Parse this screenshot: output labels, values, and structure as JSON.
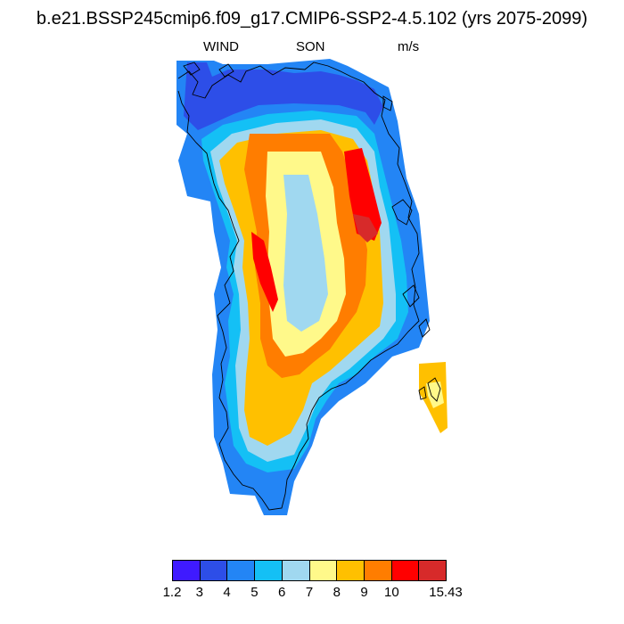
{
  "title": "b.e21.BSSP245cmip6.f09_g17.CMIP6-SSP2-4.5.102 (yrs 2075-2099)",
  "subtitle": {
    "variable": "WIND",
    "season": "SON",
    "units": "m/s"
  },
  "colorbar": {
    "colors": [
      "#3f1aff",
      "#2d4ee8",
      "#2385f5",
      "#14c0f5",
      "#a0d8f0",
      "#fff98a",
      "#ffc000",
      "#ff7d00",
      "#ff0000",
      "#d72a2a"
    ],
    "labels": [
      "1.2",
      "3",
      "4",
      "5",
      "6",
      "7",
      "8",
      "9",
      "10",
      "15.43"
    ]
  }
}
